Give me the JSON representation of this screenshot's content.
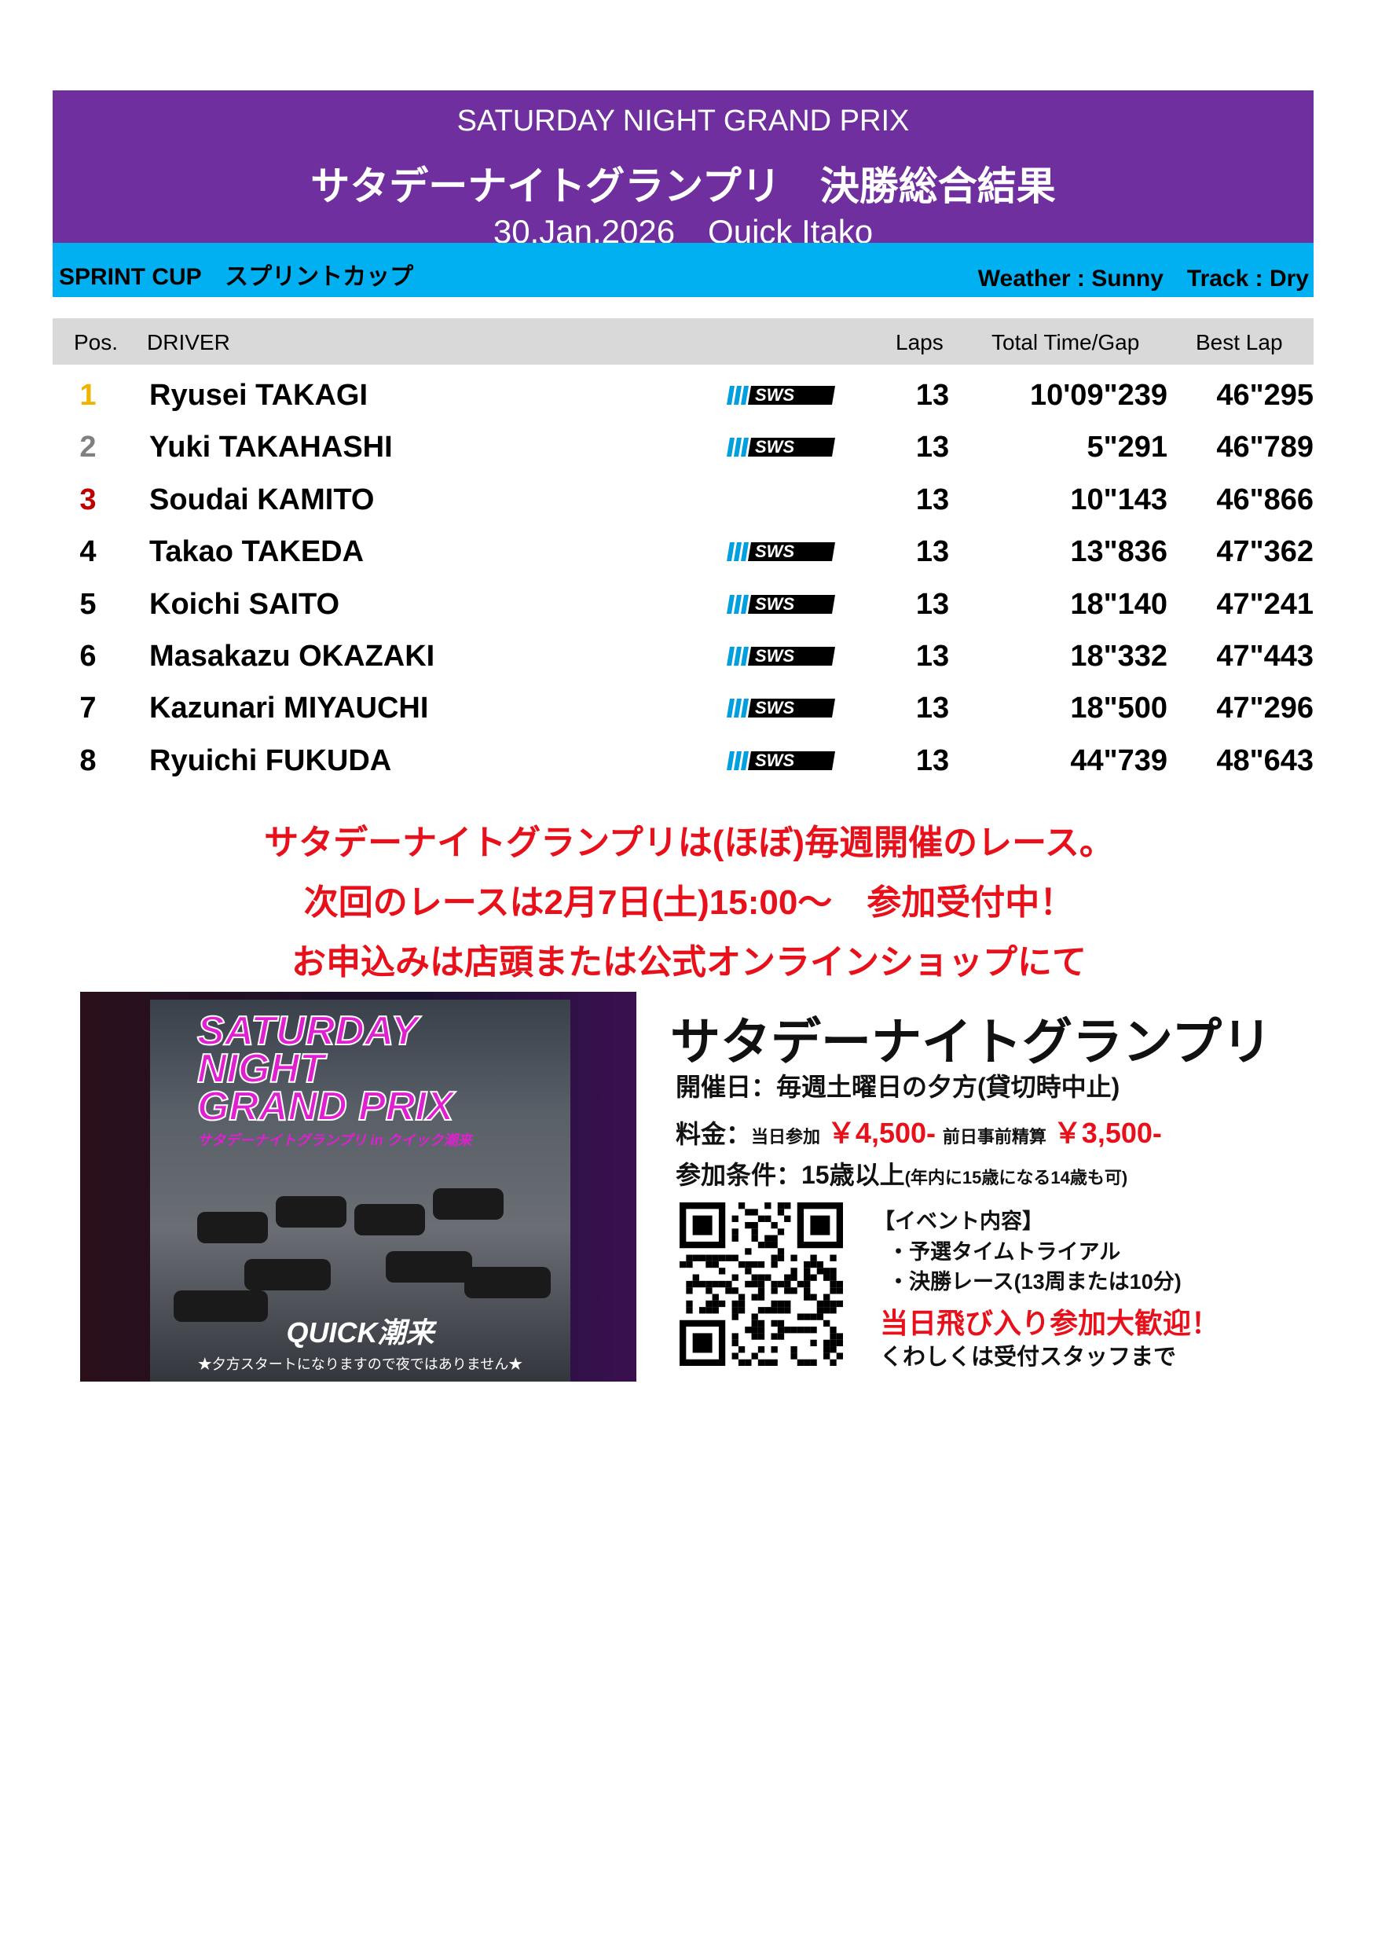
{
  "header": {
    "title_en": "SATURDAY NIGHT GRAND PRIX",
    "title_jp": "サタデーナイトグランプリ　決勝総合結果",
    "date_venue": "30,Jan,2026　Quick Itako"
  },
  "subheader": {
    "class": "SPRINT CUP　スプリントカップ",
    "conditions": "Weather : Sunny　Track : Dry"
  },
  "table": {
    "headers": {
      "pos": "Pos.",
      "driver": "DRIVER",
      "laps": "Laps",
      "total": "Total Time/Gap",
      "best": "Best Lap"
    },
    "rows": [
      {
        "pos": "1",
        "driver": "Ryusei TAKAGI",
        "sws": true,
        "laps": "13",
        "total": "10'09\"239",
        "best": "46\"295",
        "pos_color": "#f0b400"
      },
      {
        "pos": "2",
        "driver": "Yuki TAKAHASHI",
        "sws": true,
        "laps": "13",
        "total": "5\"291",
        "best": "46\"789",
        "pos_color": "#808080"
      },
      {
        "pos": "3",
        "driver": "Soudai KAMITO",
        "sws": false,
        "laps": "13",
        "total": "10\"143",
        "best": "46\"866",
        "pos_color": "#c00000"
      },
      {
        "pos": "4",
        "driver": "Takao TAKEDA",
        "sws": true,
        "laps": "13",
        "total": "13\"836",
        "best": "47\"362",
        "pos_color": "#000000"
      },
      {
        "pos": "5",
        "driver": "Koichi SAITO",
        "sws": true,
        "laps": "13",
        "total": "18\"140",
        "best": "47\"241",
        "pos_color": "#000000"
      },
      {
        "pos": "6",
        "driver": "Masakazu OKAZAKI",
        "sws": true,
        "laps": "13",
        "total": "18\"332",
        "best": "47\"443",
        "pos_color": "#000000"
      },
      {
        "pos": "7",
        "driver": "Kazunari MIYAUCHI",
        "sws": true,
        "laps": "13",
        "total": "18\"500",
        "best": "47\"296",
        "pos_color": "#000000"
      },
      {
        "pos": "8",
        "driver": "Ryuichi FUKUDA",
        "sws": true,
        "laps": "13",
        "total": "44\"739",
        "best": "48\"643",
        "pos_color": "#000000"
      }
    ]
  },
  "sws_logo": "SWS",
  "notice": [
    "サタデーナイトグランプリは(ほぼ)毎週開催のレース。",
    "次回のレースは2月7日(土)15:00～　参加受付中！",
    "お申込みは店頭または公式オンラインショップにて"
  ],
  "poster": {
    "title": [
      "SATURDAY",
      "NIGHT",
      "GRAND PRIX"
    ],
    "subtitle": "サタデーナイトグランプリ in クイック潮来",
    "brand": "QUICK潮来",
    "note": "★夕方スタートになりますので夜ではありません★"
  },
  "info": {
    "title": "サタデーナイトグランプリ",
    "schedule": "開催日：毎週土曜日の夕方(貸切時中止)",
    "fee_label": "料金：",
    "fee_same_day_label": "当日参加",
    "fee_same_day": "￥4,500-",
    "fee_advance_label": "前日事前精算",
    "fee_advance": "￥3,500-",
    "cond_label": "参加条件：15歳以上",
    "cond_note": "(年内に15歳になる14歳も可)",
    "event_header": "【イベント内容】",
    "event_items": [
      "・予選タイムトライアル",
      "・決勝レース(13周または10分)"
    ],
    "walkin": "当日飛び入り参加大歓迎！",
    "contact": "くわしくは受付スタッフまで"
  },
  "colors": {
    "purple": "#6f2f9e",
    "cyan": "#00b0f0",
    "red": "#e8101a",
    "blue": "#3a4bd0"
  }
}
